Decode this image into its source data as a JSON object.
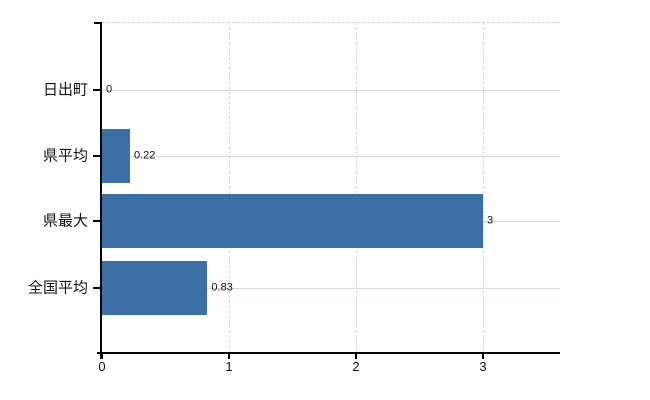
{
  "chart_data": {
    "type": "bar",
    "orientation": "horizontal",
    "title": "",
    "categories": [
      "日出町",
      "県平均",
      "県最大",
      "全国平均"
    ],
    "values": [
      0,
      0.22,
      3,
      0.83
    ],
    "value_labels": [
      "0",
      "0.22",
      "3",
      "0.83"
    ],
    "x_ticks": [
      0,
      1,
      2,
      3
    ],
    "x_tick_labels": [
      "0",
      "1",
      "2",
      "3"
    ],
    "xlim": [
      0,
      3.6
    ],
    "grid": {
      "horizontal": "solid",
      "vertical": "dashed",
      "top_border": "dashed"
    },
    "legend": "none",
    "colors": {
      "bar": "#3b6fa6",
      "axis": "#000000",
      "gridline_h": "#d4dcd4",
      "gridline_v": "#d2d8d2",
      "text": "#111111",
      "background": "#ffffff"
    }
  }
}
